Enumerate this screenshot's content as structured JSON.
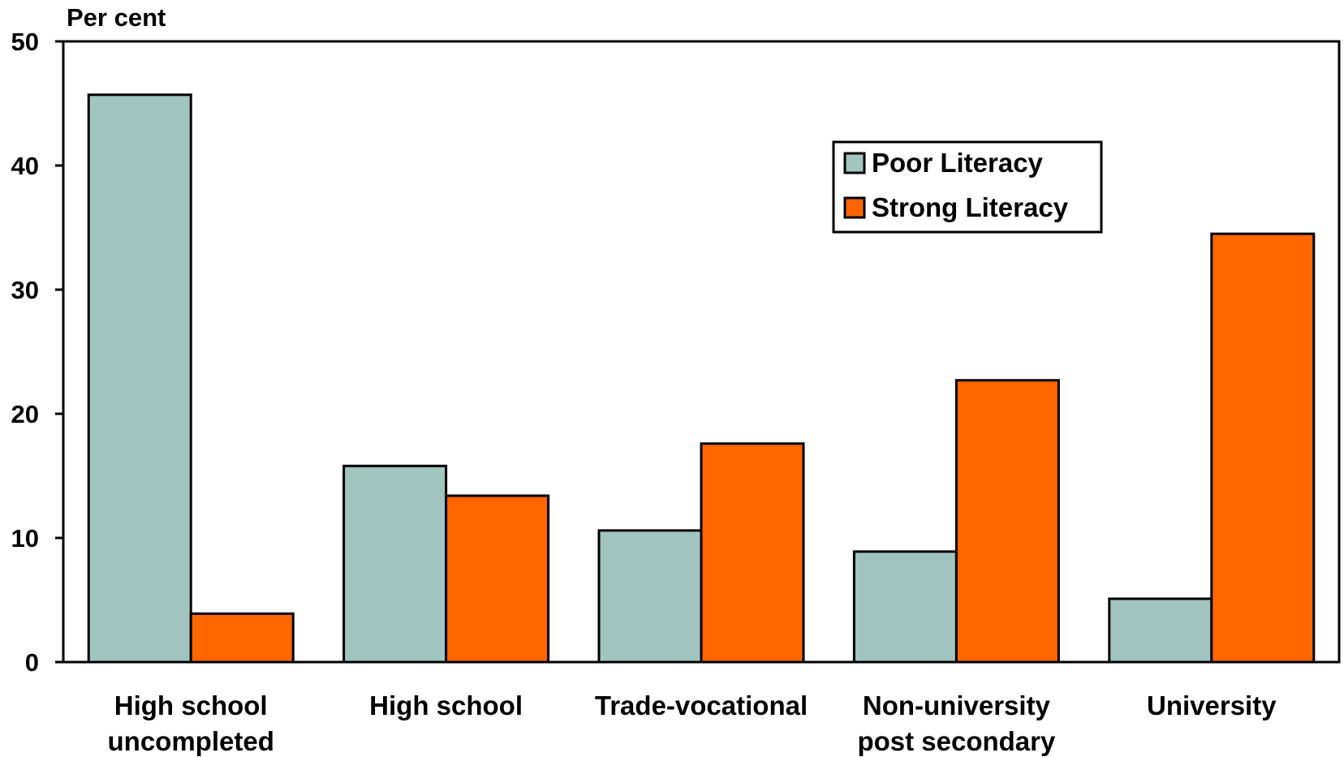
{
  "chart_data": {
    "type": "bar",
    "ylabel": "Per cent",
    "ylim": [
      0,
      50
    ],
    "yticks": [
      "0",
      "10",
      "20",
      "30",
      "40",
      "50"
    ],
    "categories": [
      [
        "High school",
        "uncompleted"
      ],
      [
        "High school"
      ],
      [
        "Trade-vocational"
      ],
      [
        "Non-university",
        "post secondary"
      ],
      [
        "University"
      ]
    ],
    "series": [
      {
        "name": "Poor Literacy",
        "color": "#a2c4be",
        "values": [
          45.7,
          15.8,
          10.6,
          8.9,
          5.1
        ]
      },
      {
        "name": "Strong Literacy",
        "color": "#ff6600",
        "values": [
          3.9,
          13.4,
          17.6,
          22.7,
          34.5
        ]
      }
    ],
    "legend": {
      "placement": "top-right"
    },
    "grid": false
  }
}
